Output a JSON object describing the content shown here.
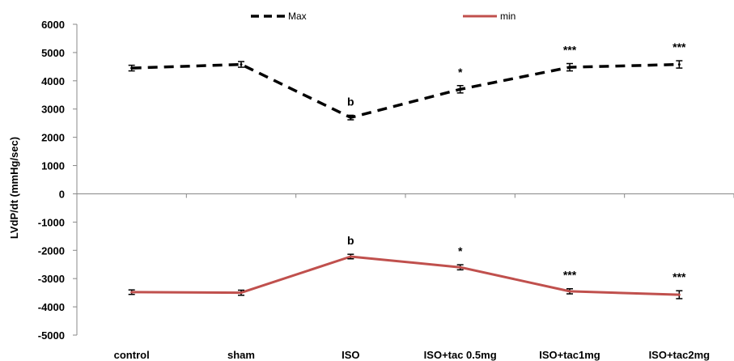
{
  "chart_data": {
    "type": "line",
    "ylabel": "LVdP/dt (mmHg/sec)",
    "xlabel": "",
    "ylim": [
      -5000,
      6000
    ],
    "yticks": [
      6000,
      5000,
      4000,
      3000,
      2000,
      1000,
      0,
      -1000,
      -2000,
      -3000,
      -4000,
      -5000
    ],
    "categories": [
      "control",
      "sham",
      "ISO",
      "ISO+tac 0.5mg",
      "ISO+tac1mg",
      "ISO+tac2mg"
    ],
    "legend_position": "top",
    "grid": false,
    "series": [
      {
        "name": "Max",
        "color": "#000000",
        "dash": "dashed",
        "values": [
          4450,
          4580,
          2700,
          3700,
          4480,
          4580
        ],
        "errors": [
          100,
          100,
          80,
          130,
          130,
          130
        ],
        "annotations": [
          "",
          "",
          "b",
          "*",
          "***",
          "***"
        ]
      },
      {
        "name": "min",
        "color": "#c0504d",
        "dash": "solid",
        "values": [
          -3480,
          -3500,
          -2220,
          -2600,
          -3450,
          -3570
        ],
        "errors": [
          80,
          90,
          80,
          90,
          90,
          140
        ],
        "annotations": [
          "",
          "",
          "b",
          "*",
          "***",
          "***"
        ]
      }
    ]
  }
}
